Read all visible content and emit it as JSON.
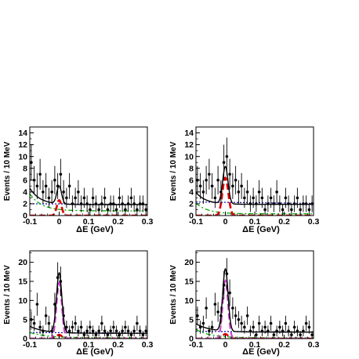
{
  "chart_data": [
    {
      "type": "scatter",
      "panel": "top-left",
      "xlabel": "ΔE (GeV)",
      "ylabel": "Events / 10 MeV",
      "xlim": [
        -0.1,
        0.3
      ],
      "ylim": [
        0,
        15
      ],
      "x_ticks": [
        "-0.1",
        "0",
        "0.1",
        "0.2",
        "0.3"
      ],
      "y_ticks": [
        "0",
        "2",
        "4",
        "6",
        "8",
        "10",
        "12",
        "14"
      ],
      "grid": false,
      "points": {
        "x": [
          -0.095,
          -0.085,
          -0.075,
          -0.065,
          -0.055,
          -0.045,
          -0.035,
          -0.025,
          -0.015,
          -0.005,
          0.005,
          0.015,
          0.025,
          0.035,
          0.045,
          0.055,
          0.065,
          0.075,
          0.085,
          0.095,
          0.105,
          0.115,
          0.125,
          0.135,
          0.145,
          0.155,
          0.165,
          0.175,
          0.185,
          0.195,
          0.205,
          0.215,
          0.225,
          0.235,
          0.245,
          0.255,
          0.265,
          0.275,
          0.285,
          0.295
        ],
        "y": [
          9,
          6,
          5,
          7,
          4,
          5,
          3,
          4,
          6,
          5,
          7,
          4,
          3,
          5,
          2,
          3,
          4,
          2,
          3,
          2,
          1,
          3,
          2,
          1,
          2,
          3,
          1,
          2,
          2,
          1,
          3,
          2,
          1,
          2,
          3,
          2,
          1,
          2,
          2,
          1
        ],
        "err": [
          3.0,
          2.4,
          2.2,
          2.6,
          2.0,
          2.2,
          1.7,
          2.0,
          2.4,
          2.2,
          2.6,
          2.0,
          1.7,
          2.2,
          1.4,
          1.7,
          2.0,
          1.4,
          1.7,
          1.4,
          1.0,
          1.7,
          1.4,
          1.0,
          1.4,
          1.7,
          1.0,
          1.4,
          1.4,
          1.0,
          1.7,
          1.4,
          1.0,
          1.4,
          1.7,
          1.4,
          1.0,
          1.4,
          1.4,
          1.0
        ]
      },
      "curves": {
        "total": {
          "color": "#000000",
          "style": "solid",
          "base": 1.85,
          "slope": 0.0,
          "peak": 3.0,
          "sigma": 0.008,
          "tail_amp": 2.8,
          "tail_decay": 0.035
        },
        "background": {
          "color": "#1a1aa8",
          "style": "dotted",
          "base": 2.0,
          "slope": -0.6
        },
        "green": {
          "color": "#00aa00",
          "style": "dash-dot",
          "amp": 2.9,
          "decay": 0.04,
          "floor": 0.8
        },
        "signal": {
          "color": "#dd0000",
          "style": "dashed",
          "peak": 2.6,
          "sigma": 0.008
        }
      }
    },
    {
      "type": "scatter",
      "panel": "top-right",
      "xlabel": "ΔE (GeV)",
      "ylabel": "Events / 10 MeV",
      "xlim": [
        -0.1,
        0.3
      ],
      "ylim": [
        0,
        15
      ],
      "x_ticks": [
        "-0.1",
        "0",
        "0.1",
        "0.2",
        "0.3"
      ],
      "y_ticks": [
        "0",
        "2",
        "4",
        "6",
        "8",
        "10",
        "12",
        "14"
      ],
      "grid": false,
      "points": {
        "x": [
          -0.095,
          -0.085,
          -0.075,
          -0.065,
          -0.055,
          -0.045,
          -0.035,
          -0.025,
          -0.015,
          -0.005,
          0.005,
          0.015,
          0.025,
          0.035,
          0.045,
          0.055,
          0.065,
          0.075,
          0.085,
          0.095,
          0.105,
          0.115,
          0.125,
          0.135,
          0.145,
          0.155,
          0.165,
          0.175,
          0.185,
          0.195,
          0.205,
          0.215,
          0.225,
          0.235,
          0.245,
          0.255,
          0.265,
          0.275,
          0.285,
          0.295
        ],
        "y": [
          6,
          5,
          4,
          6,
          7,
          5,
          3,
          6,
          4,
          9,
          10,
          7,
          5,
          6,
          4,
          5,
          3,
          4,
          2,
          3,
          2,
          4,
          3,
          1,
          2,
          3,
          2,
          4,
          2,
          1,
          3,
          2,
          1,
          2,
          3,
          1,
          2,
          2,
          1,
          2
        ],
        "err": [
          2.4,
          2.2,
          2.0,
          2.4,
          2.6,
          2.2,
          1.7,
          2.4,
          2.0,
          3.0,
          3.2,
          2.6,
          2.2,
          2.4,
          2.0,
          2.2,
          1.7,
          2.0,
          1.4,
          1.7,
          1.4,
          2.0,
          1.7,
          1.0,
          1.4,
          1.7,
          1.4,
          2.0,
          1.4,
          1.0,
          1.7,
          1.4,
          1.0,
          1.4,
          1.7,
          1.0,
          1.4,
          1.4,
          1.0,
          1.4
        ]
      },
      "curves": {
        "total": {
          "color": "#000000",
          "style": "solid",
          "base": 1.9,
          "slope": 0.0,
          "peak": 6.3,
          "sigma": 0.009,
          "tail_amp": 2.0,
          "tail_decay": 0.035
        },
        "background": {
          "color": "#1a1aa8",
          "style": "dotted",
          "base": 2.3,
          "slope": -1.2
        },
        "green": {
          "color": "#00aa00",
          "style": "dash-dot",
          "amp": 1.8,
          "decay": 0.04,
          "floor": 0.3
        },
        "signal": {
          "color": "#dd0000",
          "style": "dashed",
          "peak": 6.4,
          "sigma": 0.01
        }
      }
    },
    {
      "type": "scatter",
      "panel": "bottom-left",
      "xlabel": "ΔE (GeV)",
      "ylabel": "Events / 10 MeV",
      "xlim": [
        -0.1,
        0.3
      ],
      "ylim": [
        0,
        23
      ],
      "x_ticks": [
        "-0.1",
        "0",
        "0.1",
        "0.2",
        "0.3"
      ],
      "y_ticks": [
        "0",
        "5",
        "10",
        "15",
        "20"
      ],
      "grid": false,
      "points": {
        "x": [
          -0.095,
          -0.085,
          -0.075,
          -0.065,
          -0.055,
          -0.045,
          -0.035,
          -0.025,
          -0.015,
          -0.005,
          0.005,
          0.015,
          0.025,
          0.035,
          0.045,
          0.055,
          0.065,
          0.075,
          0.085,
          0.095,
          0.105,
          0.115,
          0.125,
          0.135,
          0.145,
          0.155,
          0.165,
          0.175,
          0.185,
          0.195,
          0.205,
          0.215,
          0.225,
          0.235,
          0.245,
          0.255,
          0.265,
          0.275,
          0.285,
          0.295
        ],
        "y": [
          5,
          4,
          9,
          3,
          2,
          6,
          4,
          2,
          9,
          16,
          15,
          6,
          3,
          2,
          3,
          4,
          2,
          3,
          1,
          2,
          3,
          2,
          1,
          2,
          4,
          2,
          1,
          2,
          3,
          2,
          1,
          2,
          3,
          2,
          1,
          2,
          4,
          2,
          1,
          2
        ],
        "err": [
          2.2,
          2.0,
          3.0,
          1.7,
          1.4,
          2.4,
          2.0,
          1.4,
          3.0,
          4.0,
          3.9,
          2.4,
          1.7,
          1.4,
          1.7,
          2.0,
          1.4,
          1.7,
          1.0,
          1.4,
          1.7,
          1.4,
          1.0,
          1.4,
          2.0,
          1.4,
          1.0,
          1.4,
          1.7,
          1.4,
          1.0,
          1.4,
          1.7,
          1.4,
          1.0,
          1.4,
          2.0,
          1.4,
          1.0,
          1.4
        ]
      },
      "curves": {
        "total": {
          "color": "#000000",
          "style": "solid",
          "base": 1.4,
          "slope": 0.0,
          "peak": 15.6,
          "sigma": 0.009,
          "tail_amp": 1.8,
          "tail_decay": 0.05
        },
        "background": {
          "color": "#1a1aa8",
          "style": "dotted",
          "base": 1.6,
          "slope": -0.8
        },
        "green": {
          "color": "#00aa00",
          "style": "dash-dot",
          "amp": 1.4,
          "decay": 0.06,
          "floor": 0.2
        },
        "signal": {
          "color": "#dd0000",
          "style": "dashed",
          "peak": 1.0,
          "sigma": 0.009
        },
        "magenta": {
          "color": "#cc44cc",
          "style": "dashed",
          "peak": 14.6,
          "sigma": 0.009
        }
      }
    },
    {
      "type": "scatter",
      "panel": "bottom-right",
      "xlabel": "ΔE (GeV)",
      "ylabel": "Events / 10 MeV",
      "xlim": [
        -0.1,
        0.3
      ],
      "ylim": [
        0,
        23
      ],
      "x_ticks": [
        "-0.1",
        "0",
        "0.1",
        "0.2",
        "0.3"
      ],
      "y_ticks": [
        "0",
        "5",
        "10",
        "15",
        "20"
      ],
      "grid": false,
      "points": {
        "x": [
          -0.095,
          -0.085,
          -0.075,
          -0.065,
          -0.055,
          -0.045,
          -0.035,
          -0.025,
          -0.015,
          -0.005,
          0.005,
          0.015,
          0.025,
          0.035,
          0.045,
          0.055,
          0.065,
          0.075,
          0.085,
          0.095,
          0.105,
          0.115,
          0.125,
          0.135,
          0.145,
          0.155,
          0.165,
          0.175,
          0.185,
          0.195,
          0.205,
          0.215,
          0.225,
          0.235,
          0.245,
          0.255,
          0.265,
          0.275,
          0.285,
          0.295
        ],
        "y": [
          6,
          3,
          4,
          8,
          2,
          3,
          9,
          7,
          6,
          14,
          17,
          12,
          8,
          6,
          5,
          4,
          3,
          6,
          2,
          3,
          1,
          4,
          2,
          3,
          2,
          4,
          1,
          2,
          3,
          2,
          4,
          2,
          1,
          3,
          2,
          1,
          2,
          4,
          3,
          1
        ],
        "err": [
          2.4,
          1.7,
          2.0,
          2.8,
          1.4,
          1.7,
          3.0,
          2.6,
          2.4,
          3.7,
          4.1,
          3.5,
          2.8,
          2.4,
          2.2,
          2.0,
          1.7,
          2.4,
          1.4,
          1.7,
          1.0,
          2.0,
          1.4,
          1.7,
          1.4,
          2.0,
          1.0,
          1.4,
          1.7,
          1.4,
          2.0,
          1.4,
          1.0,
          1.7,
          1.4,
          1.0,
          1.4,
          2.0,
          1.7,
          1.0
        ]
      },
      "curves": {
        "total": {
          "color": "#000000",
          "style": "solid",
          "base": 1.7,
          "slope": 0.0,
          "peak": 16.3,
          "sigma": 0.009,
          "tail_amp": 2.2,
          "tail_decay": 0.05
        },
        "background": {
          "color": "#1a1aa8",
          "style": "dotted",
          "base": 1.9,
          "slope": -0.8
        },
        "green": {
          "color": "#00aa00",
          "style": "dash-dot",
          "amp": 2.2,
          "decay": 0.05,
          "floor": 0.2
        },
        "signal": {
          "color": "#dd0000",
          "style": "dashed",
          "peak": 1.2,
          "sigma": 0.009
        },
        "magenta": {
          "color": "#cc44cc",
          "style": "dashed",
          "peak": 15.2,
          "sigma": 0.009
        }
      }
    }
  ]
}
